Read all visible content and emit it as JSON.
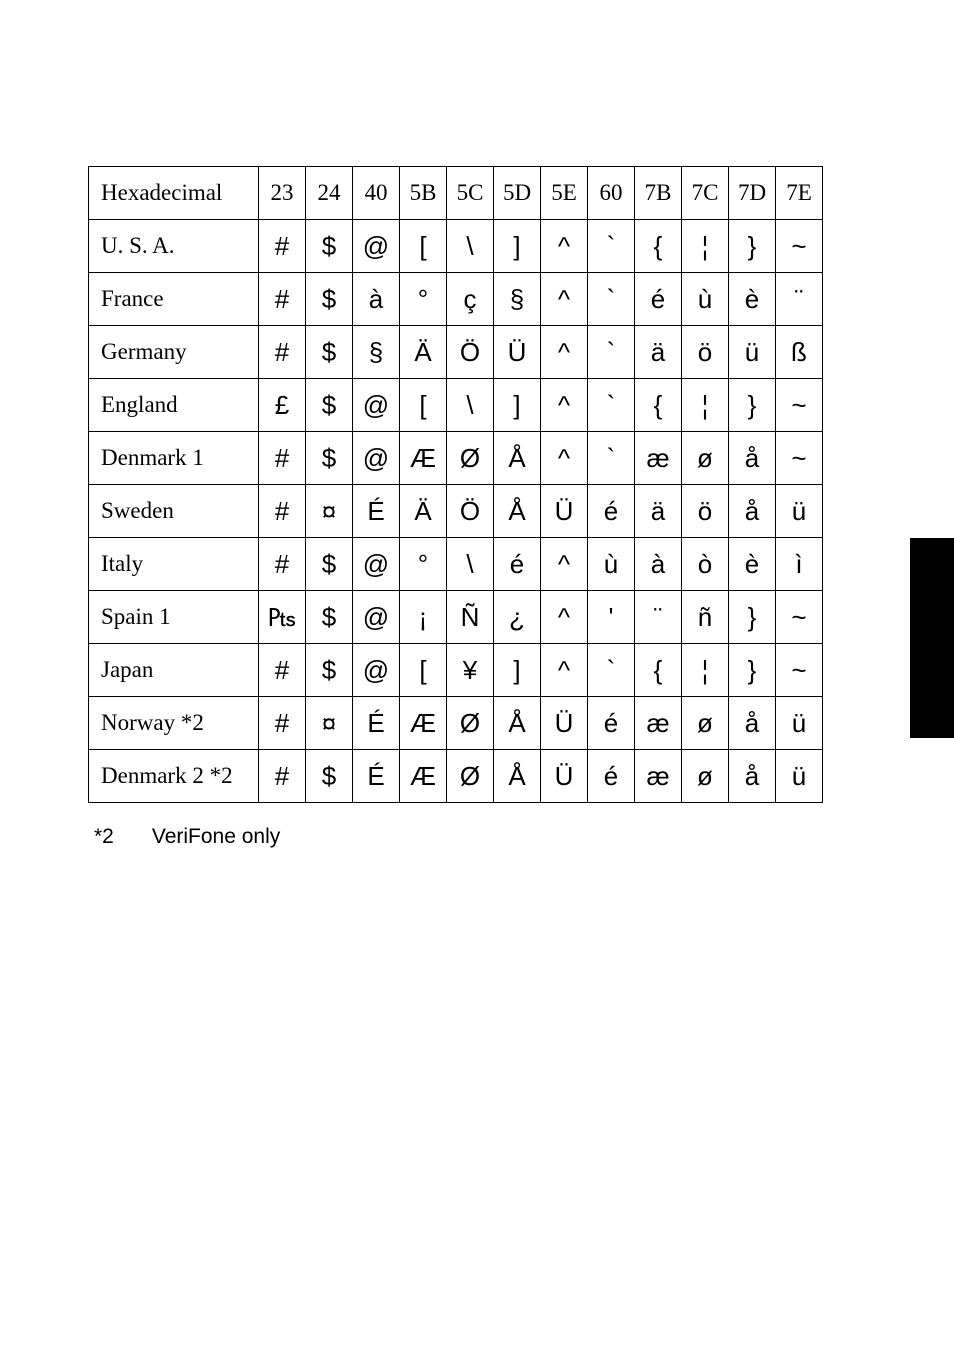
{
  "table": {
    "header_label": "Hexadecimal",
    "hex_columns": [
      "23",
      "24",
      "40",
      "5B",
      "5C",
      "5D",
      "5E",
      "60",
      "7B",
      "7C",
      "7D",
      "7E"
    ],
    "rows": [
      {
        "label": "U. S. A.",
        "cells": [
          "#",
          "$",
          "@",
          "[",
          "\\",
          "]",
          "^",
          "`",
          "{",
          "¦",
          "}",
          "~"
        ]
      },
      {
        "label": "France",
        "cells": [
          "#",
          "$",
          "à",
          "°",
          "ç",
          "§",
          "^",
          "`",
          "é",
          "ù",
          "è",
          "¨"
        ]
      },
      {
        "label": "Germany",
        "cells": [
          "#",
          "$",
          "§",
          "Ä",
          "Ö",
          "Ü",
          "^",
          "`",
          "ä",
          "ö",
          "ü",
          "ß"
        ]
      },
      {
        "label": "England",
        "cells": [
          "£",
          "$",
          "@",
          "[",
          "\\",
          "]",
          "^",
          "`",
          "{",
          "¦",
          "}",
          "~"
        ]
      },
      {
        "label": "Denmark 1",
        "cells": [
          "#",
          "$",
          "@",
          "Æ",
          "Ø",
          "Å",
          "^",
          "`",
          "æ",
          "ø",
          "å",
          "~"
        ]
      },
      {
        "label": "Sweden",
        "cells": [
          "#",
          "¤",
          "É",
          "Ä",
          "Ö",
          "Å",
          "Ü",
          "é",
          "ä",
          "ö",
          "å",
          "ü"
        ]
      },
      {
        "label": "Italy",
        "cells": [
          "#",
          "$",
          "@",
          "°",
          "\\",
          "é",
          "^",
          "ù",
          "à",
          "ò",
          "è",
          "ì"
        ]
      },
      {
        "label": "Spain 1",
        "cells": [
          "₧",
          "$",
          "@",
          "¡",
          "Ñ",
          "¿",
          "^",
          "'",
          "¨",
          "ñ",
          "}",
          "~"
        ]
      },
      {
        "label": "Japan",
        "cells": [
          "#",
          "$",
          "@",
          "[",
          "¥",
          "]",
          "^",
          "`",
          "{",
          "¦",
          "}",
          "~"
        ]
      },
      {
        "label": "Norway *2",
        "cells": [
          "#",
          "¤",
          "É",
          "Æ",
          "Ø",
          "Å",
          "Ü",
          "é",
          "æ",
          "ø",
          "å",
          "ü"
        ]
      },
      {
        "label": "Denmark 2 *2",
        "cells": [
          "#",
          "$",
          "É",
          "Æ",
          "Ø",
          "Å",
          "Ü",
          "é",
          "æ",
          "ø",
          "å",
          "ü"
        ]
      }
    ]
  },
  "footnote": {
    "marker": "*2",
    "text": "VeriFone only"
  },
  "colors": {
    "border": "#000000",
    "background": "#ffffff",
    "sidetab": "#000000"
  }
}
